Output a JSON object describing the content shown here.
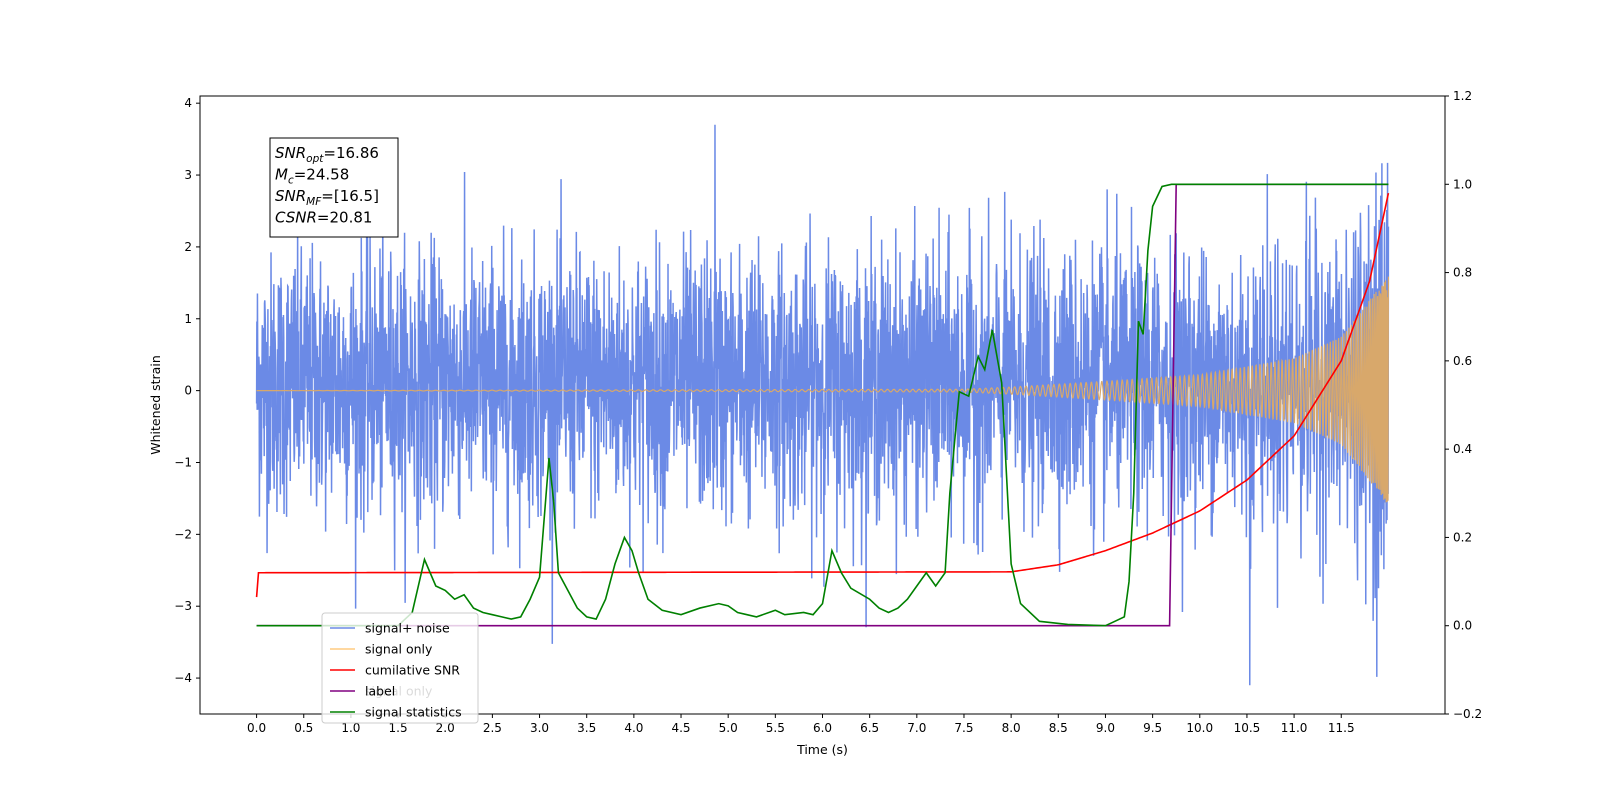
{
  "chart_data": {
    "type": "line",
    "xlabel": "Time (s)",
    "ylabel": "Whitened strain",
    "xlim": [
      -0.6,
      12.6
    ],
    "ylim": [
      -4.5,
      4.1
    ],
    "y2lim": [
      -0.2,
      1.2
    ],
    "x_ticks": [
      "0.0",
      "0.5",
      "1.0",
      "1.5",
      "2.0",
      "2.5",
      "3.0",
      "3.5",
      "4.0",
      "4.5",
      "5.0",
      "5.5",
      "6.0",
      "6.5",
      "7.0",
      "7.5",
      "8.0",
      "8.5",
      "9.0",
      "9.5",
      "10.0",
      "10.5",
      "11.0",
      "11.5"
    ],
    "y_ticks": [
      "−4",
      "−3",
      "−2",
      "−1",
      "0",
      "1",
      "2",
      "3",
      "4"
    ],
    "y2_ticks": [
      "−0.2",
      "0.0",
      "0.2",
      "0.4",
      "0.6",
      "0.8",
      "1.0",
      "1.2"
    ],
    "legend": {
      "placement": "lower-left",
      "entries": [
        "signal+ noise",
        "signal only",
        "cumilative SNR",
        "label",
        "signal statistics"
      ]
    },
    "ghost_legend_text": "signal only",
    "annotation": [
      {
        "base": "SNR",
        "sub": "opt",
        "value": "=16.86"
      },
      {
        "base": "M",
        "sub": "c",
        "value": "=24.58"
      },
      {
        "base": "SNR",
        "sub": "MF",
        "value": "=[16.5]"
      },
      {
        "base": "CSNR",
        "sub": "",
        "value": "=20.81"
      }
    ],
    "series": [
      {
        "name": "signal+ noise",
        "axis": "left",
        "color": "#6b8ae6",
        "x_range": [
          0.0,
          12.0
        ],
        "noise_std": 0.9,
        "peak_max": 3.7,
        "peak_min": -4.1
      },
      {
        "name": "signal only",
        "axis": "left",
        "color": "#d8a86b",
        "x_range": [
          0.0,
          12.0
        ],
        "amplitude_points": [
          [
            0.0,
            0.0
          ],
          [
            7.5,
            0.02
          ],
          [
            8.0,
            0.05
          ],
          [
            9.0,
            0.13
          ],
          [
            10.0,
            0.22
          ],
          [
            11.0,
            0.45
          ],
          [
            11.5,
            0.75
          ],
          [
            12.0,
            1.6
          ]
        ]
      },
      {
        "name": "cumilative SNR",
        "axis": "right",
        "color": "#ff0000",
        "x": [
          0.0,
          0.02,
          8.0,
          8.5,
          9.0,
          9.5,
          10.0,
          10.5,
          11.0,
          11.5,
          11.8,
          12.0
        ],
        "y": [
          0.065,
          0.12,
          0.122,
          0.138,
          0.17,
          0.21,
          0.26,
          0.33,
          0.43,
          0.6,
          0.78,
          0.98
        ]
      },
      {
        "name": "label",
        "axis": "right",
        "color": "#800080",
        "x": [
          0.0,
          9.68,
          9.75,
          12.0
        ],
        "y": [
          0.0,
          0.0,
          1.0,
          1.0
        ]
      },
      {
        "name": "signal statistics",
        "axis": "right",
        "color": "#008000",
        "x": [
          0.0,
          1.5,
          1.65,
          1.78,
          1.9,
          2.0,
          2.1,
          2.2,
          2.3,
          2.4,
          2.5,
          2.6,
          2.7,
          2.8,
          2.9,
          3.0,
          3.1,
          3.15,
          3.2,
          3.3,
          3.4,
          3.5,
          3.6,
          3.7,
          3.8,
          3.9,
          3.98,
          4.05,
          4.15,
          4.3,
          4.5,
          4.7,
          4.9,
          5.0,
          5.1,
          5.2,
          5.3,
          5.5,
          5.6,
          5.8,
          5.9,
          6.0,
          6.1,
          6.2,
          6.3,
          6.5,
          6.6,
          6.7,
          6.8,
          6.9,
          7.0,
          7.1,
          7.2,
          7.3,
          7.35,
          7.45,
          7.55,
          7.65,
          7.72,
          7.8,
          7.9,
          8.0,
          8.1,
          8.3,
          8.6,
          9.0,
          9.1,
          9.2,
          9.25,
          9.3,
          9.35,
          9.4,
          9.45,
          9.5,
          9.6,
          9.7,
          10.0,
          11.0,
          12.0
        ],
        "y": [
          0.0,
          0.0,
          0.03,
          0.15,
          0.09,
          0.08,
          0.06,
          0.07,
          0.04,
          0.03,
          0.025,
          0.02,
          0.015,
          0.02,
          0.06,
          0.11,
          0.38,
          0.28,
          0.12,
          0.08,
          0.04,
          0.02,
          0.015,
          0.06,
          0.14,
          0.2,
          0.17,
          0.12,
          0.06,
          0.035,
          0.025,
          0.04,
          0.05,
          0.045,
          0.03,
          0.025,
          0.02,
          0.035,
          0.025,
          0.03,
          0.025,
          0.05,
          0.17,
          0.12,
          0.085,
          0.06,
          0.04,
          0.03,
          0.04,
          0.06,
          0.09,
          0.12,
          0.09,
          0.12,
          0.3,
          0.53,
          0.52,
          0.61,
          0.58,
          0.67,
          0.55,
          0.14,
          0.05,
          0.01,
          0.003,
          0.0,
          0.01,
          0.02,
          0.1,
          0.3,
          0.69,
          0.66,
          0.85,
          0.95,
          0.995,
          1.0,
          1.0,
          1.0,
          1.0
        ]
      }
    ]
  }
}
